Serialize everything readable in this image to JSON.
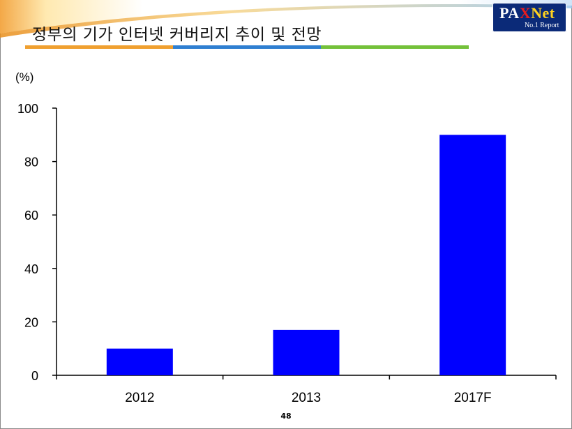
{
  "slide": {
    "title": "정부의 기가 인터넷 커버리지 추이 및 전망",
    "page_number": "48",
    "title_rule_colors": [
      "#f0a030",
      "#2f7fd1",
      "#74c13a"
    ]
  },
  "logo": {
    "part1": "PA",
    "part2": "X",
    "part3": "Net",
    "sub": "No.1 Report",
    "colors": {
      "pa": "#ffffff",
      "x": "#e81d1d",
      "net": "#ffd21f",
      "bg": "#0b2a78"
    }
  },
  "chart_data": {
    "type": "bar",
    "unit_label": "(%)",
    "categories": [
      "2012",
      "2013",
      "2017F"
    ],
    "values": [
      10,
      17,
      90
    ],
    "ylim": [
      0,
      100
    ],
    "yticks": [
      0,
      20,
      40,
      60,
      80,
      100
    ],
    "ytick_labels": [
      "0",
      "20",
      "40",
      "60",
      "80",
      "100"
    ],
    "bar_color": "#0000ff",
    "grid": false,
    "legend": "none"
  }
}
